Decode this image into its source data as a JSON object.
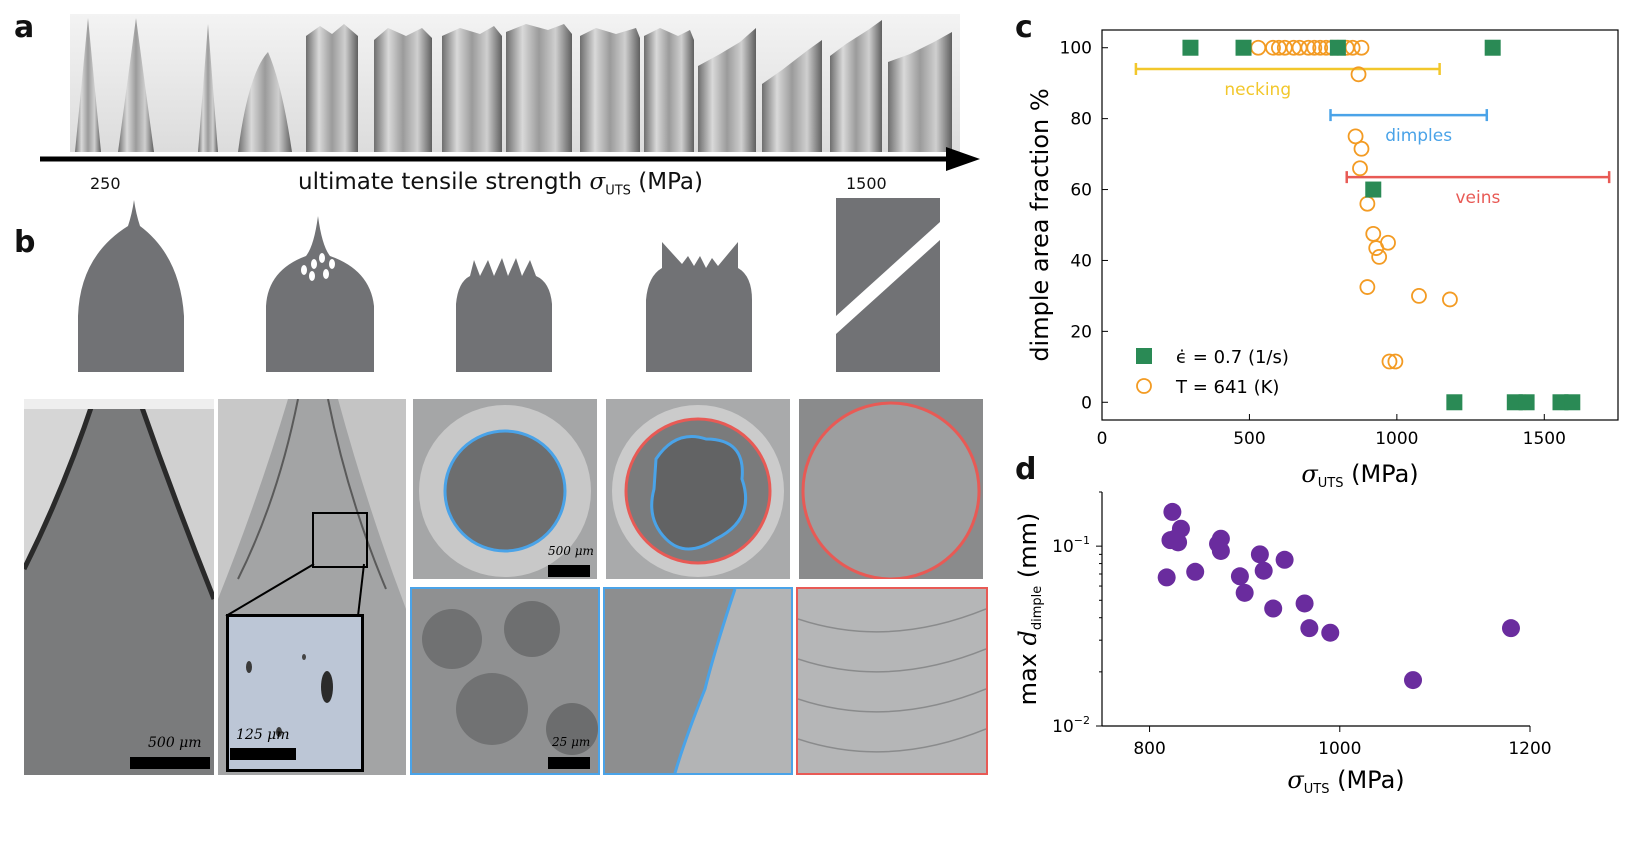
{
  "panels": {
    "a": "a",
    "b": "b",
    "c": "c",
    "d": "d"
  },
  "panel_a": {
    "axis_label_prefix": "ultimate tensile strength ",
    "axis_symbol": "σ",
    "axis_subscript": "UTS",
    "axis_unit": "(MPa)",
    "left_value": "250",
    "right_value": "1500"
  },
  "panel_b": {
    "scale_500_left": "500 μm",
    "scale_125": "125 μm",
    "scale_500_right": "500 μm",
    "scale_25": "25 μm"
  },
  "colors": {
    "necking": "#f2c72b",
    "dimples": "#4aa3e8",
    "veins": "#e85a55",
    "square": "#2a8a55",
    "circle": "#f39b23",
    "purple": "#6a2c9e"
  },
  "chart_data": [
    {
      "type": "scatter",
      "panel": "c",
      "xlabel_symbol": "σ",
      "xlabel_sub": "UTS",
      "xlabel_unit": "(MPa)",
      "ylabel": "dimple area fraction %",
      "xlim": [
        0,
        1750
      ],
      "ylim": [
        -5,
        105
      ],
      "xticks": [
        0,
        500,
        1000,
        1500
      ],
      "yticks": [
        0,
        20,
        40,
        60,
        80,
        100
      ],
      "series": [
        {
          "name": "ϵ̇ = 0.7 (1/s)",
          "marker": "square",
          "points": [
            [
              300,
              100
            ],
            [
              480,
              100
            ],
            [
              800,
              100
            ],
            [
              1325,
              100
            ],
            [
              920,
              60
            ],
            [
              1195,
              0
            ],
            [
              1400,
              0
            ],
            [
              1440,
              0
            ],
            [
              1555,
              0
            ],
            [
              1595,
              0
            ]
          ]
        },
        {
          "name": "T = 641 (K)",
          "marker": "circle",
          "points": [
            [
              530,
              100
            ],
            [
              580,
              100
            ],
            [
              600,
              100
            ],
            [
              620,
              100
            ],
            [
              650,
              100
            ],
            [
              670,
              100
            ],
            [
              700,
              100
            ],
            [
              720,
              100
            ],
            [
              740,
              100
            ],
            [
              760,
              100
            ],
            [
              780,
              100
            ],
            [
              800,
              100
            ],
            [
              830,
              100
            ],
            [
              850,
              100
            ],
            [
              880,
              100
            ],
            [
              870,
              92.5
            ],
            [
              860,
              75
            ],
            [
              880,
              71.5
            ],
            [
              875,
              66
            ],
            [
              900,
              56
            ],
            [
              920,
              47.5
            ],
            [
              970,
              45
            ],
            [
              930,
              43.5
            ],
            [
              940,
              41
            ],
            [
              900,
              32.5
            ],
            [
              1075,
              30
            ],
            [
              1180,
              29
            ],
            [
              975,
              11.5
            ],
            [
              995,
              11.5
            ],
            [
              1435,
              0
            ]
          ]
        }
      ],
      "ranges": [
        {
          "name": "necking",
          "from": 115,
          "to": 1145,
          "y": 94
        },
        {
          "name": "dimples",
          "from": 775,
          "to": 1305,
          "y": 81
        },
        {
          "name": "veins",
          "from": 830,
          "to": 1720,
          "y": 63.5
        }
      ]
    },
    {
      "type": "scatter",
      "panel": "d",
      "xlabel_symbol": "σ",
      "xlabel_sub": "UTS",
      "xlabel_unit": "(MPa)",
      "ylabel_prefix": "max ",
      "ylabel_symbol": "d",
      "ylabel_sub": "dimple",
      "ylabel_unit": "(mm)",
      "xlim": [
        750,
        1200
      ],
      "ylim_log": [
        0.01,
        0.2
      ],
      "xticks": [
        800,
        1000,
        1200
      ],
      "yticks": [
        {
          "value": 0.1,
          "base": "10",
          "exp": "−1"
        },
        {
          "value": 0.01,
          "base": "10",
          "exp": "−2"
        }
      ],
      "points": [
        [
          818,
          0.067
        ],
        [
          822,
          0.108
        ],
        [
          824,
          0.155
        ],
        [
          827,
          0.11
        ],
        [
          830,
          0.105
        ],
        [
          833,
          0.125
        ],
        [
          848,
          0.072
        ],
        [
          872,
          0.103
        ],
        [
          875,
          0.11
        ],
        [
          875,
          0.094
        ],
        [
          895,
          0.068
        ],
        [
          900,
          0.055
        ],
        [
          916,
          0.09
        ],
        [
          920,
          0.073
        ],
        [
          930,
          0.045
        ],
        [
          942,
          0.084
        ],
        [
          963,
          0.048
        ],
        [
          968,
          0.035
        ],
        [
          990,
          0.033
        ],
        [
          1077,
          0.018
        ],
        [
          1180,
          0.035
        ]
      ]
    }
  ]
}
